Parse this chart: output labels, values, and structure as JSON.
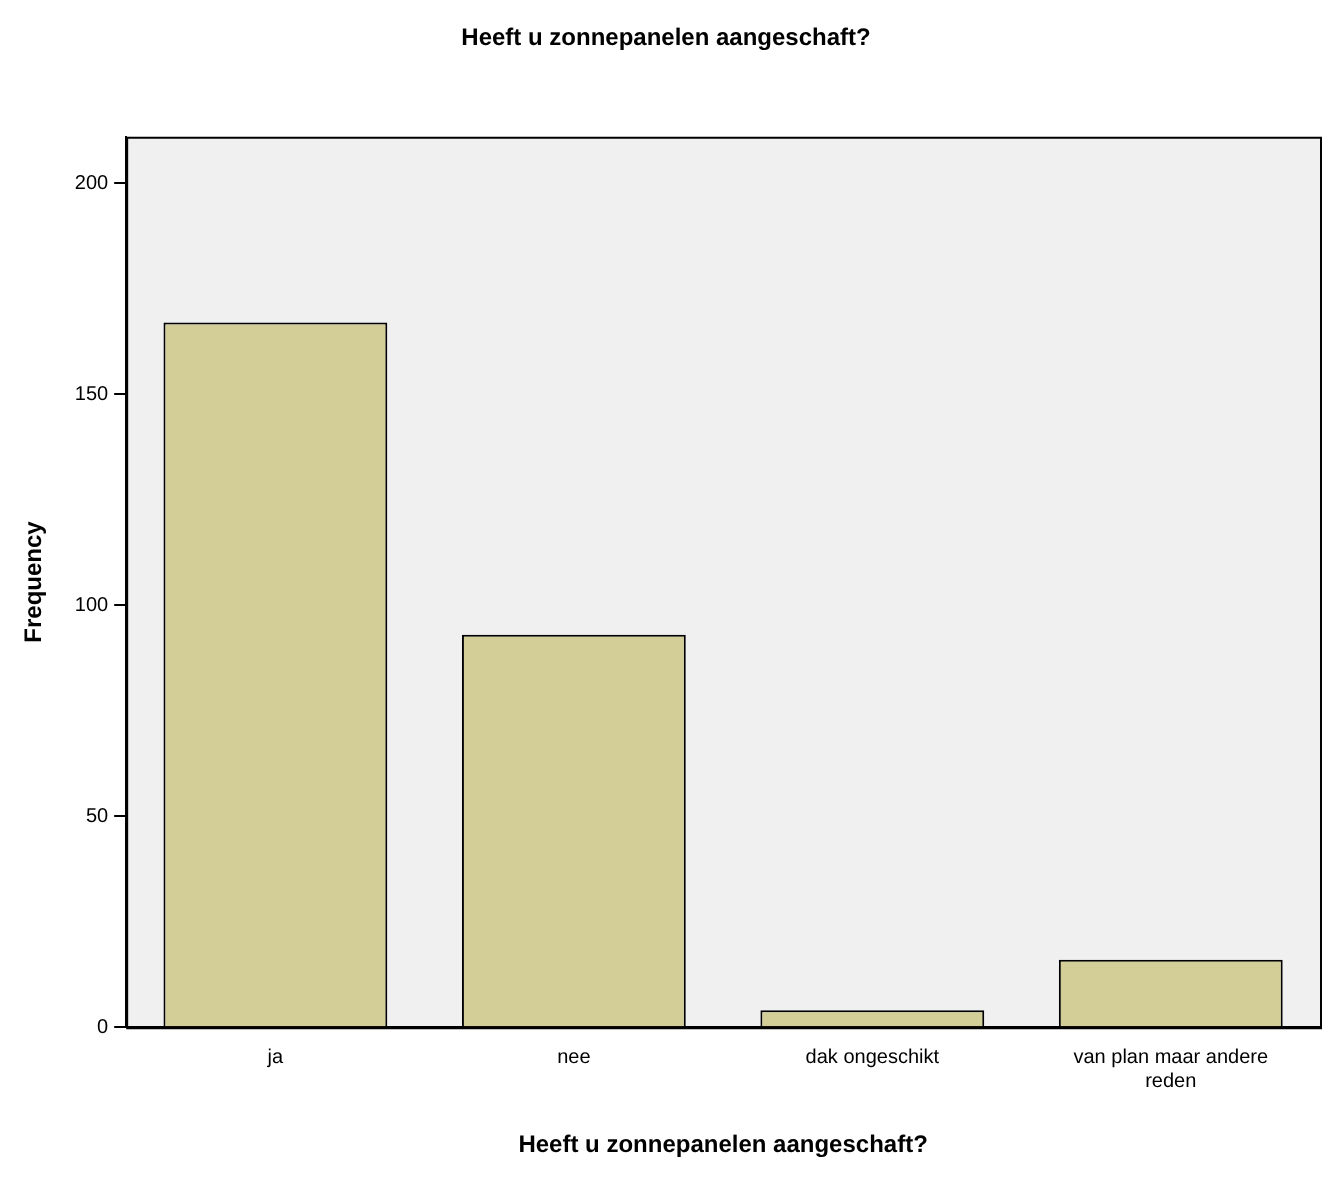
{
  "chart_data": {
    "type": "bar",
    "title": "Heeft u zonnepanelen aangeschaft?",
    "xlabel": "Heeft u zonnepanelen aangeschaft?",
    "ylabel": "Frequency",
    "categories": [
      "ja",
      "nee",
      "dak ongeschikt",
      "van plan maar andere reden"
    ],
    "values": [
      167,
      93,
      4,
      16
    ],
    "color": "#d3ce97",
    "ylim": [
      0,
      211
    ],
    "yticks": [
      0,
      50,
      100,
      150,
      200
    ],
    "grid": false,
    "legend": false
  }
}
